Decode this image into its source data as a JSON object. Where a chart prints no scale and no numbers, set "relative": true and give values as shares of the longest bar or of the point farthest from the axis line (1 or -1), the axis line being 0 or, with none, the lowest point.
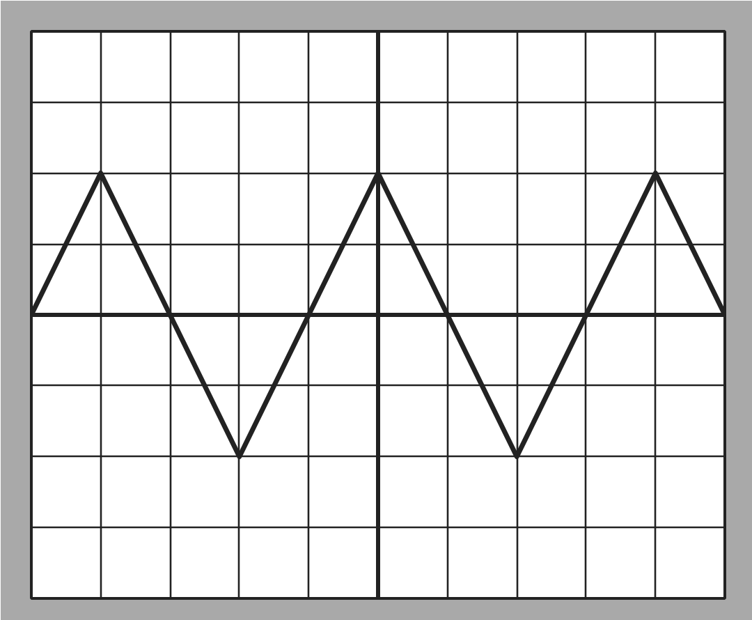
{
  "chart_data": {
    "type": "line",
    "relative": true,
    "categories": [
      null,
      null,
      null,
      null,
      null,
      null,
      null,
      null,
      null,
      null,
      null
    ],
    "series": [
      {
        "color": "#222222",
        "values": [
          0,
          1,
          0,
          -1,
          0,
          1,
          0,
          -1,
          0,
          1,
          0
        ]
      }
    ],
    "grid": true,
    "marker": "none",
    "line_style": "solid",
    "tick_labels": false
  }
}
